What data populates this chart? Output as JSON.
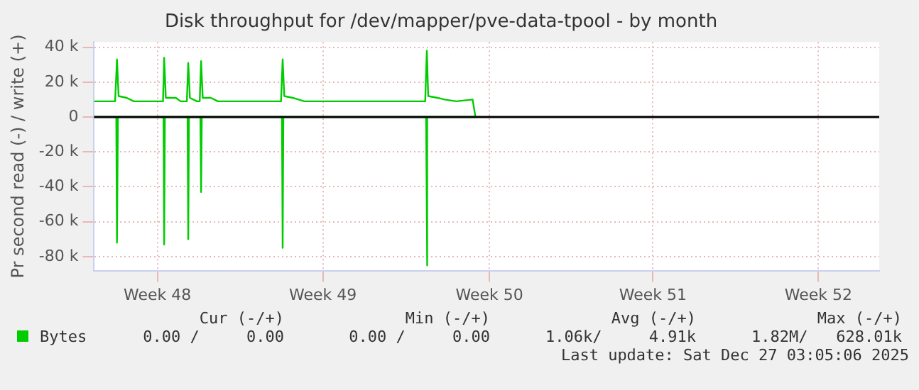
{
  "chart_data": {
    "type": "line",
    "title": "Disk throughput for /dev/mapper/pve-data-tpool - by month",
    "ylabel": "Pr second read (-) / write (+)",
    "xlim": [
      "2025-11-23T12:00",
      "2025-12-27T02:24"
    ],
    "xticks": [
      {
        "value": "2025-11-26T05:00",
        "label": "Week 48"
      },
      {
        "value": "2025-12-03T07:00",
        "label": "Week 49"
      },
      {
        "value": "2025-12-10T10:00",
        "label": "Week 50"
      },
      {
        "value": "2025-12-17T10:00",
        "label": "Week 51"
      },
      {
        "value": "2025-12-24T12:00",
        "label": "Week 52"
      }
    ],
    "ylim": [
      -88000,
      43000
    ],
    "yticks": [
      {
        "value": -80000,
        "label": "-80 k"
      },
      {
        "value": -60000,
        "label": "-60 k"
      },
      {
        "value": -40000,
        "label": "-40 k"
      },
      {
        "value": -20000,
        "label": "-20 k"
      },
      0,
      {
        "value": 20000,
        "label": "20 k"
      },
      {
        "value": 40000,
        "label": "40 k"
      }
    ],
    "grid": true,
    "legend": "bottom",
    "ref_lines": [
      {
        "axis": "y",
        "value": 0,
        "color": "#000000"
      }
    ],
    "series": [
      {
        "name": "Bytes",
        "color": "#00cc00",
        "x": [
          "2025-11-23T12:00",
          "2025-11-24T09:36",
          "2025-11-24T11:31",
          "2025-11-24T13:12",
          "2025-11-24T21:36",
          "2025-11-25T04:48",
          "2025-11-25T16:48",
          "2025-11-26T02:24",
          "2025-11-26T10:48",
          "2025-11-26T12:00",
          "2025-11-26T13:41",
          "2025-11-27T00:00",
          "2025-11-27T04:48",
          "2025-11-27T11:17",
          "2025-11-27T12:43",
          "2025-11-27T14:24",
          "2025-11-27T21:36",
          "2025-11-28T00:29",
          "2025-11-28T01:55",
          "2025-11-28T03:36",
          "2025-11-28T12:00",
          "2025-11-28T19:12",
          "2025-11-29T12:00",
          "2025-11-30T12:00",
          "2025-12-01T12:00",
          "2025-12-01T13:41",
          "2025-12-01T15:22",
          "2025-12-02T00:00",
          "2025-12-02T12:00",
          "2025-12-03T12:00",
          "2025-12-04T12:00",
          "2025-12-05T12:00",
          "2025-12-06T12:00",
          "2025-12-07T16:05",
          "2025-12-07T17:46",
          "2025-12-07T19:12",
          "2025-12-08T04:48",
          "2025-12-08T12:00",
          "2025-12-09T00:00",
          "2025-12-09T16:48",
          "2025-12-09T19:41"
        ],
        "values": [
          9000,
          9000,
          33000,
          12000,
          11000,
          9000,
          9000,
          9000,
          9000,
          34000,
          11000,
          11000,
          9000,
          9000,
          31000,
          11000,
          9000,
          9000,
          32000,
          11000,
          11000,
          9000,
          9000,
          9000,
          9000,
          33000,
          12000,
          11000,
          9000,
          9000,
          9000,
          9000,
          9000,
          9000,
          38000,
          12000,
          11000,
          10000,
          9000,
          10000,
          0
        ]
      },
      {
        "color": "#00cc00",
        "x": [
          "2025-11-23T12:00",
          "2025-11-24T10:48",
          "2025-11-24T11:31",
          "2025-11-24T12:29",
          "2025-11-26T11:17",
          "2025-11-26T12:00",
          "2025-11-26T12:43",
          "2025-11-27T12:00",
          "2025-11-27T12:43",
          "2025-11-27T13:26",
          "2025-11-28T01:12",
          "2025-11-28T01:55",
          "2025-11-28T02:38",
          "2025-12-01T12:58",
          "2025-12-01T13:41",
          "2025-12-01T14:24",
          "2025-12-07T17:02",
          "2025-12-07T17:46",
          "2025-12-07T18:29",
          "2025-12-09T19:41"
        ],
        "values": [
          0,
          0,
          -72000,
          0,
          0,
          -73000,
          0,
          0,
          -70000,
          0,
          0,
          -43000,
          0,
          0,
          -75000,
          0,
          0,
          -85000,
          0,
          0
        ]
      }
    ],
    "annotations": [
      "Cur (-/+)",
      "Min (-/+)",
      "Avg (-/+)",
      "Max (-/+)",
      "0.00 /     0.00",
      "0.00 /     0.00",
      "1.06k/     4.91k",
      "1.82M/   628.01k",
      "Last update: Sat Dec 27 03:05:06 2025"
    ]
  }
}
